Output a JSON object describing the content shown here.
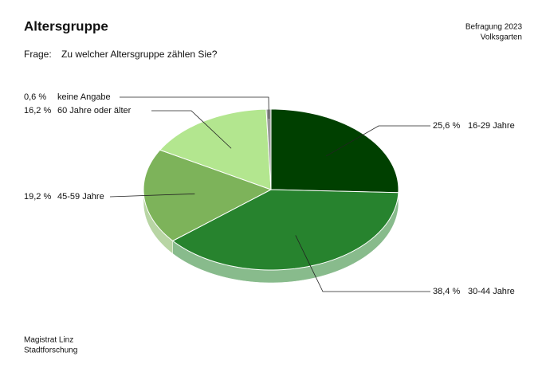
{
  "chart_data": {
    "type": "pie",
    "title": "Altersgruppe",
    "source": [
      "Befragung 2023",
      "Volksgarten"
    ],
    "question_label": "Frage:",
    "question": "Zu welcher Altersgruppe zählen Sie?",
    "footer": [
      "Magistrat Linz",
      "Stadtforschung"
    ],
    "categories": [
      "16-29 Jahre",
      "30-44 Jahre",
      "45-59 Jahre",
      "60 Jahre oder älter",
      "keine Angabe"
    ],
    "values": [
      25.6,
      38.4,
      19.2,
      16.2,
      0.6
    ],
    "value_labels": [
      "25,6 %",
      "38,4 %",
      "19,2 %",
      "16,2 %",
      "0,6 %"
    ],
    "colors": [
      "#004000",
      "#27832e",
      "#7db35a",
      "#b3e68f",
      "#9a9a9a"
    ]
  }
}
